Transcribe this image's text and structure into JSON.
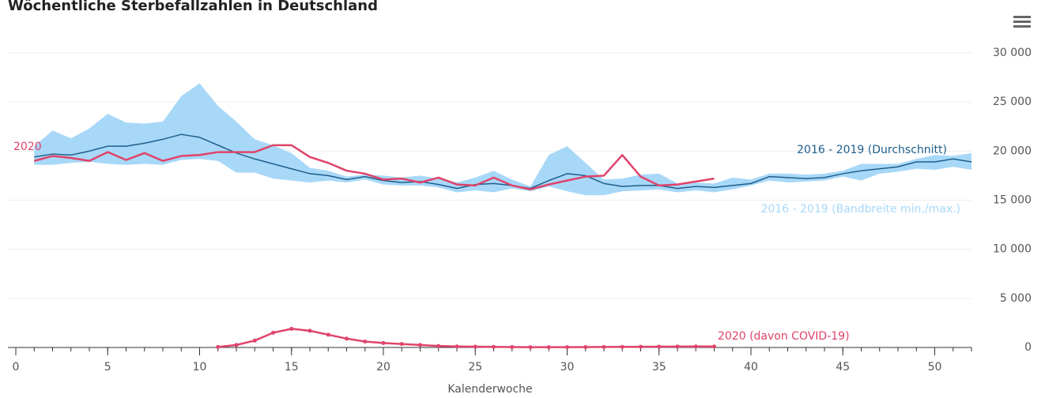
{
  "chart_data": {
    "type": "line",
    "title": "Wöchentliche Sterbefallzahlen in Deutschland",
    "xlabel": "Kalenderwoche",
    "xlim": [
      0,
      52
    ],
    "xticks": [
      0,
      5,
      10,
      15,
      20,
      25,
      30,
      35,
      40,
      45,
      50
    ],
    "ylim": [
      0,
      30000
    ],
    "yticks": [
      0,
      {
        "value": 5000,
        "label": "5 000"
      },
      {
        "value": 10000,
        "label": "10 000"
      },
      {
        "value": 15000,
        "label": "15 000"
      },
      {
        "value": 20000,
        "label": "20 000"
      },
      {
        "value": 25000,
        "label": "25 000"
      },
      {
        "value": 30000,
        "label": "30 000"
      }
    ],
    "grid": true,
    "x": [
      1,
      2,
      3,
      4,
      5,
      6,
      7,
      8,
      9,
      10,
      11,
      12,
      13,
      14,
      15,
      16,
      17,
      18,
      19,
      20,
      21,
      22,
      23,
      24,
      25,
      26,
      27,
      28,
      29,
      30,
      31,
      32,
      33,
      34,
      35,
      36,
      37,
      38,
      39,
      40,
      41,
      42,
      43,
      44,
      45,
      46,
      47,
      48,
      49,
      50,
      51,
      52
    ],
    "series": [
      {
        "name": "2016 - 2019 (Bandbreite min./max.)",
        "color": "#a8d8f8",
        "max": [
          20500,
          22100,
          21300,
          22300,
          23800,
          22900,
          22800,
          23000,
          25600,
          26900,
          24600,
          23000,
          21200,
          20600,
          19800,
          18300,
          18000,
          17400,
          17600,
          17500,
          17300,
          17500,
          17200,
          16800,
          17300,
          18000,
          17100,
          16400,
          19600,
          20500,
          18800,
          17100,
          17200,
          17600,
          17700,
          16700,
          16800,
          16700,
          17300,
          17100,
          17700,
          17700,
          17600,
          17700,
          18000,
          18700,
          18700,
          18700,
          19200,
          19600,
          19500,
          19800
        ],
        "min": [
          18600,
          18600,
          18800,
          18900,
          18700,
          18600,
          18700,
          18600,
          19100,
          19200,
          19000,
          17800,
          17800,
          17200,
          17000,
          16800,
          17000,
          16800,
          17100,
          16600,
          16500,
          16500,
          16300,
          15800,
          16000,
          15800,
          16200,
          15900,
          16400,
          15900,
          15500,
          15500,
          15900,
          16000,
          16100,
          15800,
          16000,
          15800,
          16100,
          16500,
          17000,
          16800,
          16900,
          17000,
          17400,
          17000,
          17700,
          17900,
          18200,
          18100,
          18400,
          18100
        ]
      },
      {
        "name": "2016 - 2019 (Durchschnitt)",
        "color": "#1f5f8b",
        "values": [
          19400,
          19700,
          19600,
          20000,
          20500,
          20500,
          20800,
          21200,
          21700,
          21400,
          20600,
          19800,
          19200,
          18700,
          18200,
          17700,
          17500,
          17100,
          17400,
          17000,
          16800,
          16900,
          16600,
          16200,
          16600,
          16700,
          16500,
          16200,
          17000,
          17700,
          17500,
          16700,
          16400,
          16500,
          16500,
          16200,
          16400,
          16300,
          16500,
          16700,
          17400,
          17300,
          17200,
          17300,
          17700,
          18000,
          18200,
          18400,
          18900,
          18900,
          19200,
          18900
        ]
      },
      {
        "name": "2020",
        "color": "#e0436a",
        "values": [
          19000,
          19500,
          19300,
          19000,
          19900,
          19100,
          19800,
          19000,
          19500,
          19600,
          19900,
          19900,
          19900,
          20600,
          20600,
          19400,
          18800,
          18000,
          17700,
          17100,
          17200,
          16800,
          17300,
          16600,
          16500,
          17300,
          16500,
          16100,
          16600,
          17000,
          17400,
          17500,
          19600,
          17400,
          16500,
          16600,
          16900,
          17200,
          null,
          null,
          null,
          null,
          null,
          null,
          null,
          null,
          null,
          null,
          null,
          null,
          null,
          null
        ]
      },
      {
        "name": "2020 (davon COVID-19)",
        "color": "#e0436a",
        "markers": true,
        "values": [
          null,
          null,
          null,
          null,
          null,
          null,
          null,
          null,
          null,
          null,
          50,
          250,
          700,
          1500,
          1900,
          1700,
          1300,
          900,
          600,
          450,
          350,
          250,
          150,
          100,
          80,
          60,
          40,
          30,
          30,
          30,
          40,
          50,
          60,
          70,
          80,
          90,
          100,
          100,
          null,
          null,
          null,
          null,
          null,
          null,
          null,
          null,
          null,
          null,
          null,
          null,
          null,
          null
        ]
      }
    ]
  }
}
